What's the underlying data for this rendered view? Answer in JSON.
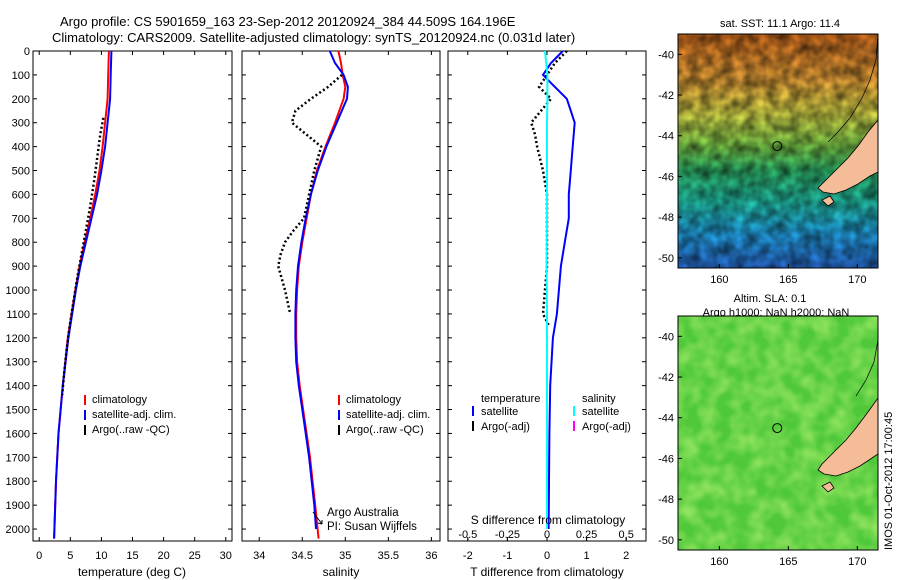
{
  "header": {
    "title_line1": "Argo profile: CS 5901659_163 23-Sep-2012 20120924_384 44.509S 164.196E",
    "title_line2": "Climatology: CARS2009. Satellite-adjusted climatology: synTS_20120924.nc (0.031d later)"
  },
  "colors": {
    "climatology": "#ff0000",
    "satellite": "#0000ff",
    "argo": "#000000",
    "salinity_satellite": "#00ffff",
    "salinity_argo": "#ff00ff",
    "land": "#f4bd98"
  },
  "chart_data": [
    {
      "type": "line",
      "name": "temperature-profile",
      "xlabel": "temperature (deg C)",
      "ylabel": "",
      "xlim": [
        -1,
        31
      ],
      "ylim": [
        2050,
        0
      ],
      "xticks": [
        0,
        5,
        10,
        15,
        20,
        25,
        30
      ],
      "yticks": [
        0,
        100,
        200,
        300,
        400,
        500,
        600,
        700,
        800,
        900,
        1000,
        1100,
        1200,
        1300,
        1400,
        1500,
        1600,
        1700,
        1800,
        1900,
        2000
      ],
      "legend": [
        "climatology",
        "satellite-adj. clim.",
        "Argo(..raw -QC)"
      ],
      "series": [
        {
          "name": "climatology",
          "color": "#ff0000",
          "depth": [
            0,
            100,
            200,
            300,
            400,
            500,
            600,
            700,
            800,
            900,
            1000,
            1200,
            1400,
            1600,
            1800,
            2040
          ],
          "values": [
            11.2,
            11.1,
            11.0,
            10.6,
            10.2,
            9.7,
            9.0,
            8.2,
            7.3,
            6.5,
            5.8,
            4.6,
            3.8,
            3.1,
            2.7,
            2.4
          ]
        },
        {
          "name": "satellite-adj. clim.",
          "color": "#0000ff",
          "depth": [
            0,
            100,
            200,
            300,
            400,
            500,
            600,
            700,
            800,
            900,
            1000,
            1200,
            1400,
            1600,
            1800,
            2040
          ],
          "values": [
            11.6,
            11.5,
            11.4,
            11.0,
            10.6,
            10.0,
            9.3,
            8.4,
            7.5,
            6.6,
            5.9,
            4.7,
            3.8,
            3.1,
            2.7,
            2.4
          ]
        },
        {
          "name": "Argo(..raw -QC)",
          "color": "#000000",
          "depth": [
            280,
            350,
            450,
            550,
            650,
            750,
            850,
            950,
            1050,
            1150,
            1250,
            1350,
            1440
          ],
          "values": [
            10.3,
            9.8,
            9.3,
            8.8,
            8.2,
            7.5,
            6.8,
            6.1,
            5.5,
            4.9,
            4.4,
            4.0,
            3.7
          ]
        }
      ]
    },
    {
      "type": "line",
      "name": "salinity-profile",
      "xlabel": "salinity",
      "xlim": [
        33.8,
        36.1
      ],
      "ylim": [
        2050,
        0
      ],
      "xticks": [
        34,
        34.5,
        35,
        35.5,
        36
      ],
      "legend": [
        "climatology",
        "satellite-adj. clim.",
        "Argo(..raw -QC)"
      ],
      "annotation_1": "Argo Australia",
      "annotation_2": "PI: Susan Wijffels",
      "series": [
        {
          "name": "climatology",
          "color": "#ff0000",
          "depth": [
            0,
            50,
            100,
            150,
            200,
            300,
            400,
            500,
            600,
            700,
            800,
            900,
            1000,
            1100,
            1200,
            1300,
            1400,
            1500,
            1600,
            1700,
            1800,
            1900,
            2040
          ],
          "values": [
            34.92,
            34.95,
            34.97,
            35.0,
            34.98,
            34.88,
            34.77,
            34.67,
            34.6,
            34.55,
            34.5,
            34.46,
            34.44,
            34.43,
            34.43,
            34.44,
            34.47,
            34.51,
            34.55,
            34.59,
            34.62,
            34.65,
            34.69
          ]
        },
        {
          "name": "satellite-adj. clim.",
          "color": "#0000ff",
          "depth": [
            0,
            50,
            100,
            150,
            200,
            300,
            400,
            500,
            600,
            700,
            800,
            900,
            1000,
            1100,
            1200,
            1300,
            1400,
            1500,
            1600,
            1700,
            1800,
            1900,
            2000
          ],
          "values": [
            34.82,
            34.88,
            34.98,
            35.03,
            35.02,
            34.9,
            34.78,
            34.68,
            34.6,
            34.54,
            34.49,
            34.45,
            34.43,
            34.42,
            34.42,
            34.43,
            34.46,
            34.5,
            34.54,
            34.58,
            34.61,
            34.64,
            34.66
          ]
        },
        {
          "name": "Argo(..raw -QC)",
          "color": "#000000",
          "depth": [
            100,
            150,
            200,
            250,
            300,
            400,
            500,
            600,
            700,
            750,
            800,
            850,
            900,
            950,
            1000,
            1100
          ],
          "values": [
            34.96,
            34.8,
            34.6,
            34.42,
            34.38,
            34.72,
            34.64,
            34.58,
            34.52,
            34.4,
            34.3,
            34.25,
            34.22,
            34.26,
            34.3,
            34.36
          ]
        }
      ]
    },
    {
      "type": "line",
      "name": "difference-profile",
      "xlabel": "T difference from climatology",
      "xlabel_top": "S difference from climatology",
      "xlim": [
        -2.5,
        2.5
      ],
      "ylim": [
        2050,
        0
      ],
      "xticks": [
        -2,
        -1,
        0,
        1,
        2
      ],
      "xticks_s": [
        -0.5,
        -0.25,
        0,
        0.25,
        0.5
      ],
      "xtick_labels_s": [
        "-0.5",
        "-0.25",
        "0",
        "0.25",
        "0.5"
      ],
      "legend_title_t": "temperature",
      "legend_title_s": "salinity",
      "legend_t": [
        "satellite",
        "Argo(-adj)"
      ],
      "legend_s": [
        "satellite",
        "Argo(-adj)"
      ],
      "series": [
        {
          "name": "T satellite",
          "color": "#0000ff",
          "depth": [
            0,
            50,
            100,
            150,
            200,
            250,
            300,
            400,
            500,
            600,
            700,
            800,
            900,
            1000,
            1100,
            1200,
            1400,
            1600,
            1800,
            2000
          ],
          "values": [
            0.4,
            0.1,
            -0.1,
            0.2,
            0.5,
            0.6,
            0.7,
            0.65,
            0.6,
            0.55,
            0.55,
            0.45,
            0.35,
            0.3,
            0.25,
            0.15,
            0.08,
            0.06,
            0.05,
            0.04
          ]
        },
        {
          "name": "T Argo(-adj)",
          "color": "#000000",
          "depth": [
            0,
            50,
            100,
            150,
            200,
            300,
            350,
            400,
            500,
            600,
            700,
            800,
            900,
            1000,
            1100,
            1150
          ],
          "values": [
            0.5,
            0.2,
            0.0,
            -0.2,
            0.1,
            -0.4,
            -0.3,
            -0.25,
            -0.1,
            0.0,
            0.0,
            0.0,
            0.0,
            -0.05,
            -0.1,
            0.05
          ]
        },
        {
          "name": "S satellite",
          "color": "#00ffff",
          "depth": [
            0,
            50,
            100,
            200,
            300,
            400,
            500,
            700,
            900,
            1100,
            1300,
            1500,
            1700,
            1900,
            2000
          ],
          "values": [
            -0.05,
            -0.02,
            0.01,
            0.01,
            0.0,
            0.0,
            0.0,
            0.0,
            -0.01,
            0.0,
            0.0,
            0.0,
            0.0,
            0.0,
            0.0
          ]
        }
      ]
    },
    {
      "type": "heatmap",
      "name": "sst-map",
      "title": "sat. SST: 11.1  Argo: 11.4",
      "xlim": [
        157,
        171.5
      ],
      "ylim": [
        -50.5,
        -39
      ],
      "xticks": [
        160,
        165,
        170
      ],
      "yticks": [
        -40,
        -42,
        -44,
        -46,
        -48,
        -50
      ],
      "marker_lon": 164.196,
      "marker_lat": -44.509
    },
    {
      "type": "heatmap",
      "name": "sla-map",
      "title_line1": "Altim. SLA: 0.1",
      "title_line2": "Argo h1000: NaN h2000: NaN",
      "xlim": [
        157,
        171.5
      ],
      "ylim": [
        -50.5,
        -39
      ],
      "xticks": [
        160,
        165,
        170
      ],
      "yticks": [
        -40,
        -42,
        -44,
        -46,
        -48,
        -50
      ],
      "marker_lon": 164.196,
      "marker_lat": -44.509
    }
  ],
  "footer": {
    "stamp": "IMOS 01-Oct-2012 17:00:45"
  }
}
